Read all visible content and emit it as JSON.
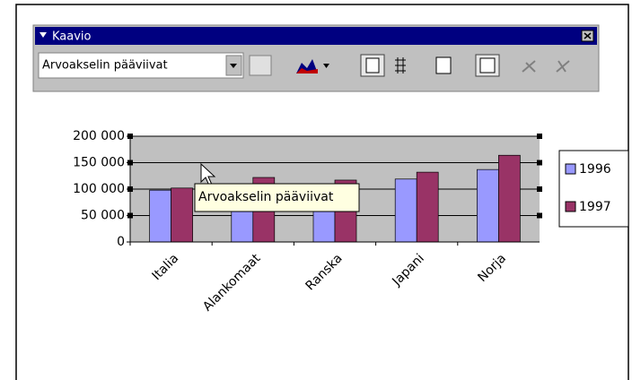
{
  "toolbar": {
    "title": "Kaavio",
    "dropdown": "Arvoakselin pääviivat"
  },
  "tooltip": "Arvoakselin pääviivat",
  "chart_data": {
    "type": "bar",
    "categories": [
      "Italia",
      "Alankomaat",
      "Ranska",
      "Japani",
      "Norja"
    ],
    "series": [
      {
        "name": "1996",
        "color": "#9999ff",
        "values": [
          98000,
          80000,
          110000,
          119000,
          137000
        ]
      },
      {
        "name": "1997",
        "color": "#993366",
        "values": [
          102000,
          122000,
          117000,
          132000,
          164000
        ]
      }
    ],
    "ylim": [
      0,
      200000
    ],
    "yticks": [
      {
        "value": 0,
        "label": "0"
      },
      {
        "value": 50000,
        "label": "50 000"
      },
      {
        "value": 100000,
        "label": "100 000"
      },
      {
        "value": 150000,
        "label": "150 000"
      },
      {
        "value": 200000,
        "label": "200 000"
      }
    ],
    "grid": true,
    "legend": "right"
  }
}
